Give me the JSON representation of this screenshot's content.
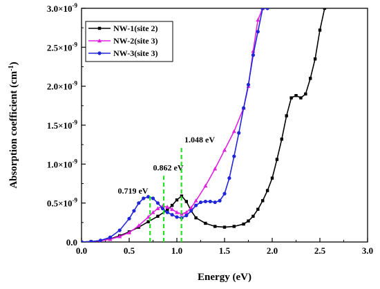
{
  "chart_data": {
    "type": "line",
    "xlabel": "Energy (eV)",
    "ylabel_main": "Absorption coefficient (cm",
    "ylabel_sup": "-1",
    "ylabel_close": ")",
    "xlim": [
      0.0,
      3.0
    ],
    "ylim": [
      0.0,
      3.0
    ],
    "y_exponent": "-9",
    "x_ticks": [
      0.0,
      0.5,
      1.0,
      1.5,
      2.0,
      2.5,
      3.0
    ],
    "x_tick_labels": [
      "0.0",
      "0.5",
      "1.0",
      "1.5",
      "2.0",
      "2.5",
      "3.0"
    ],
    "y_ticks": [
      0.0,
      0.5,
      1.0,
      1.5,
      2.0,
      2.5,
      3.0
    ],
    "y_tick_labels": [
      {
        "mant": "0.0",
        "exp": ""
      },
      {
        "mant": "0.5×10",
        "exp": "-9"
      },
      {
        "mant": "1.0×10",
        "exp": "-9"
      },
      {
        "mant": "1.5×10",
        "exp": "-9"
      },
      {
        "mant": "2.0×10",
        "exp": "-9"
      },
      {
        "mant": "2.5×10",
        "exp": "-9"
      },
      {
        "mant": "3.0×10",
        "exp": "-9"
      }
    ],
    "legend_position": "top-left",
    "grid": false,
    "series": [
      {
        "name": "NW-1(site 2)",
        "color": "#000000",
        "marker": "square",
        "x": [
          0.0,
          0.1,
          0.2,
          0.3,
          0.4,
          0.5,
          0.6,
          0.7,
          0.8,
          0.9,
          0.95,
          1.0,
          1.05,
          1.1,
          1.15,
          1.2,
          1.3,
          1.4,
          1.5,
          1.6,
          1.7,
          1.75,
          1.8,
          1.85,
          1.9,
          1.95,
          2.0,
          2.05,
          2.1,
          2.15,
          2.2,
          2.25,
          2.3,
          2.35,
          2.4,
          2.45,
          2.5,
          2.55
        ],
        "y": [
          0.0,
          0.005,
          0.015,
          0.04,
          0.08,
          0.13,
          0.19,
          0.26,
          0.33,
          0.41,
          0.47,
          0.54,
          0.59,
          0.52,
          0.4,
          0.31,
          0.24,
          0.2,
          0.19,
          0.2,
          0.23,
          0.27,
          0.33,
          0.42,
          0.53,
          0.66,
          0.82,
          1.06,
          1.32,
          1.62,
          1.85,
          1.88,
          1.85,
          1.9,
          2.1,
          2.35,
          2.72,
          3.0
        ]
      },
      {
        "name": "NW-2(site 3)",
        "color": "#e020e0",
        "marker": "triangle",
        "x": [
          0.0,
          0.1,
          0.2,
          0.3,
          0.4,
          0.5,
          0.6,
          0.7,
          0.75,
          0.8,
          0.85,
          0.9,
          0.95,
          1.0,
          1.05,
          1.1,
          1.15,
          1.2,
          1.3,
          1.4,
          1.5,
          1.6,
          1.7,
          1.75,
          1.8,
          1.85,
          1.9
        ],
        "y": [
          0.0,
          0.005,
          0.015,
          0.035,
          0.07,
          0.12,
          0.21,
          0.32,
          0.38,
          0.43,
          0.46,
          0.45,
          0.42,
          0.38,
          0.36,
          0.38,
          0.44,
          0.53,
          0.72,
          0.94,
          1.18,
          1.42,
          1.72,
          2.0,
          2.45,
          2.85,
          3.0
        ]
      },
      {
        "name": "NW-3(site 3)",
        "color": "#1f25d8",
        "marker": "circle",
        "x": [
          0.0,
          0.1,
          0.2,
          0.3,
          0.4,
          0.5,
          0.55,
          0.6,
          0.65,
          0.7,
          0.75,
          0.8,
          0.85,
          0.9,
          0.95,
          1.0,
          1.05,
          1.1,
          1.15,
          1.2,
          1.25,
          1.3,
          1.35,
          1.4,
          1.45,
          1.5,
          1.55,
          1.6,
          1.65,
          1.7,
          1.75,
          1.8,
          1.85,
          1.9,
          1.95
        ],
        "y": [
          0.0,
          0.005,
          0.02,
          0.06,
          0.15,
          0.3,
          0.4,
          0.5,
          0.56,
          0.58,
          0.56,
          0.5,
          0.43,
          0.38,
          0.35,
          0.32,
          0.31,
          0.34,
          0.4,
          0.47,
          0.51,
          0.52,
          0.52,
          0.51,
          0.53,
          0.62,
          0.82,
          1.1,
          1.4,
          1.72,
          2.02,
          2.4,
          2.7,
          3.0,
          3.0
        ]
      }
    ],
    "annotations": [
      {
        "x": 0.719,
        "label": "0.719 eV",
        "y_top": 0.6,
        "label_x": 0.38,
        "label_y": 0.62
      },
      {
        "x": 0.862,
        "label": "0.862 eV",
        "y_top": 0.85,
        "label_x": 0.75,
        "label_y": 0.92
      },
      {
        "x": 1.048,
        "label": "1.048 eV",
        "y_top": 1.22,
        "label_x": 1.08,
        "label_y": 1.28
      }
    ],
    "annotation_color": "#22e022"
  }
}
